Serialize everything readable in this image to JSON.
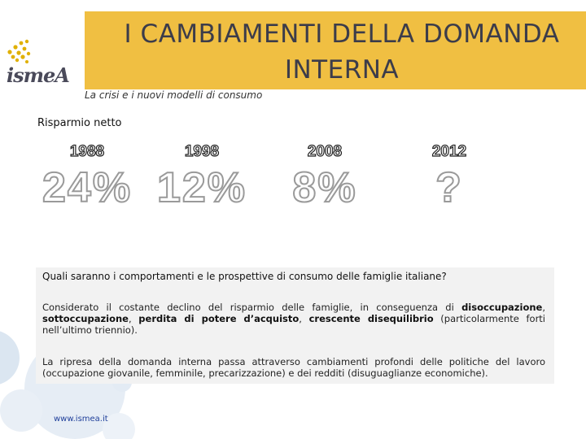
{
  "brand": {
    "logo_text": "ismeA",
    "colors": {
      "banner": "#f0bf42",
      "dots": "#e0b000",
      "link": "#1f3f9a"
    }
  },
  "header": {
    "title_line1": "I CAMBIAMENTI DELLA DOMANDA",
    "title_line2": "INTERNA",
    "subtitle": "La crisi e i nuovi modelli di consumo"
  },
  "section": {
    "label": "Risparmio netto"
  },
  "stats": [
    {
      "year": "1988",
      "value": "24%"
    },
    {
      "year": "1998",
      "value": "12%"
    },
    {
      "year": "2008",
      "value": "8%"
    },
    {
      "year": "2012",
      "value": "?"
    }
  ],
  "content": {
    "question": "Quali saranno i comportamenti e le prospettive di consumo delle famiglie italiane?",
    "p1_a": "Considerato il costante declino del risparmio delle famiglie, in conseguenza di ",
    "p1_b1": "disoccupazione",
    "p1_c": ", ",
    "p1_b2": "sottoccupazione",
    "p1_d": ", ",
    "p1_b3": "perdita di potere d’acquisto",
    "p1_e": ", ",
    "p1_b4": "crescente disequilibrio",
    "p1_f": " (particolarmente forti nell’ultimo triennio).",
    "p2": "La ripresa della domanda interna passa attraverso cambiamenti profondi delle politiche del lavoro (occupazione giovanile, femminile, precarizzazione) e dei redditi (disuguaglianze economiche)."
  },
  "footer": {
    "link": "www.ismea.it"
  }
}
